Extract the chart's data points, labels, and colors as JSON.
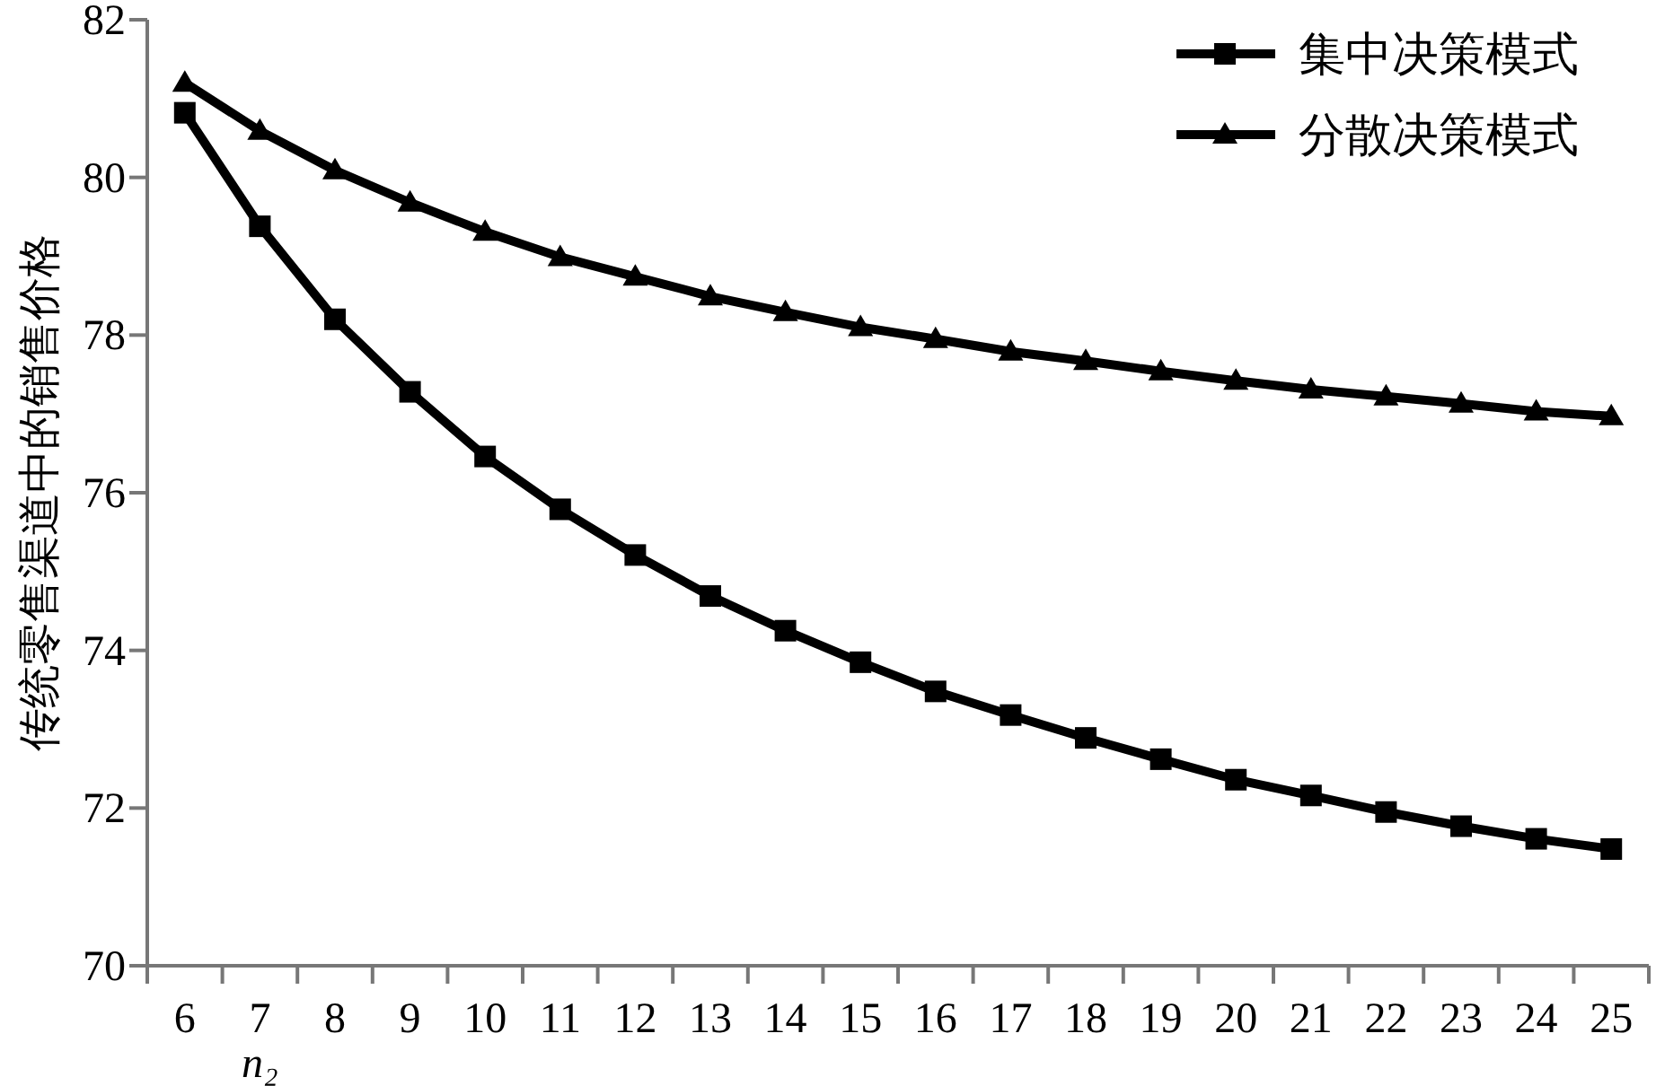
{
  "chart_data": {
    "type": "line",
    "xlabel": "n₂",
    "ylabel": "传统零售渠道中的销售价格",
    "categories": [
      "6",
      "7",
      "8",
      "9",
      "10",
      "11",
      "12",
      "13",
      "14",
      "15",
      "16",
      "17",
      "18",
      "19",
      "20",
      "21",
      "22",
      "23",
      "24",
      "25"
    ],
    "ylim": [
      70,
      82
    ],
    "yticks": [
      70,
      72,
      74,
      76,
      78,
      80,
      82
    ],
    "legend": "top right",
    "series": [
      {
        "name": "集中决策模式",
        "color": "#000000",
        "marker": "square",
        "values": [
          80.82,
          79.38,
          78.2,
          77.28,
          76.46,
          75.79,
          75.21,
          74.69,
          74.25,
          73.85,
          73.48,
          73.18,
          72.89,
          72.62,
          72.36,
          72.16,
          71.95,
          71.77,
          71.61,
          71.48
        ]
      },
      {
        "name": "分散决策模式",
        "color": "#000000",
        "marker": "triangle",
        "values": [
          81.2,
          80.59,
          80.09,
          79.68,
          79.31,
          78.99,
          78.74,
          78.49,
          78.29,
          78.1,
          77.95,
          77.79,
          77.67,
          77.54,
          77.42,
          77.31,
          77.22,
          77.13,
          77.03,
          76.97
        ]
      }
    ]
  }
}
